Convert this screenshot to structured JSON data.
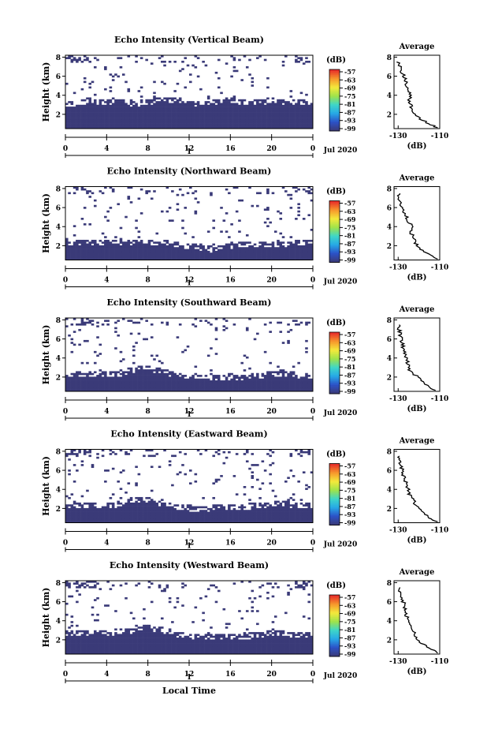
{
  "figure": {
    "xlabel_bottom": "Local Time",
    "date_label": "Jul 2020",
    "colorbar_unit": "(dB)",
    "colorbar_ticks": [
      "-57",
      "-63",
      "-69",
      "-75",
      "-81",
      "-87",
      "-93",
      "-99"
    ],
    "colors": {
      "echo_fill": "#3a3a78",
      "background": "#ffffff",
      "colorbar": [
        "#3a3a78",
        "#2c52c8",
        "#27a9e6",
        "#3fd6c8",
        "#9fe34a",
        "#f3ea3c",
        "#f79a2c",
        "#e8302a"
      ]
    }
  },
  "chart_data": [
    {
      "type": "heatmap",
      "title": "Echo Intensity (Vertical Beam)",
      "ylabel": "Height (km)",
      "x_ticks": [
        "0",
        "4",
        "8",
        "12",
        "16",
        "20",
        "0"
      ],
      "x_day_tick": "1",
      "y_ticks": [
        "2",
        "4",
        "6",
        "8"
      ],
      "xlim": [
        0,
        24
      ],
      "ylim": [
        0.5,
        8.2
      ],
      "echo_top_km": [
        3.1,
        3.0,
        3.4,
        3.3,
        3.3,
        3.4,
        3.0,
        3.1,
        3.3,
        3.4,
        3.5,
        3.4,
        3.2,
        3.1,
        3.3,
        3.3,
        3.4,
        3.3,
        3.3,
        3.3,
        3.4,
        3.3,
        3.3,
        3.3
      ],
      "average_profile": {
        "title": "Average",
        "xlabel": "(dB)",
        "x_ticks": [
          "-130",
          "-110"
        ],
        "xlim": [
          -132,
          -110
        ],
        "y_ticks": [
          "2",
          "4",
          "6",
          "8"
        ],
        "ylim": [
          0.5,
          8.2
        ],
        "height_km": [
          0.6,
          1.0,
          1.5,
          2.0,
          2.5,
          3.0,
          3.5,
          4.0,
          4.5,
          5.0,
          5.5,
          6.0,
          6.5,
          7.0,
          7.5
        ],
        "db": [
          -111,
          -115,
          -119,
          -122,
          -123,
          -124,
          -124.5,
          -124,
          -125,
          -126,
          -126.5,
          -127,
          -128.5,
          -129,
          -130
        ]
      }
    },
    {
      "type": "heatmap",
      "title": "Echo Intensity (Northward Beam)",
      "ylabel": "Height (km)",
      "x_ticks": [
        "0",
        "4",
        "8",
        "12",
        "16",
        "20",
        "0"
      ],
      "x_day_tick": "1",
      "y_ticks": [
        "2",
        "4",
        "6",
        "8"
      ],
      "xlim": [
        0,
        24
      ],
      "ylim": [
        0.5,
        8.2
      ],
      "echo_top_km": [
        2.4,
        2.3,
        2.2,
        2.2,
        2.3,
        2.4,
        2.3,
        2.2,
        2.2,
        2.2,
        2.2,
        2.0,
        1.9,
        1.8,
        1.6,
        1.8,
        2.0,
        2.1,
        2.0,
        2.1,
        2.1,
        2.1,
        2.2,
        2.2
      ],
      "average_profile": {
        "title": "Average",
        "xlabel": "(dB)",
        "x_ticks": [
          "-130",
          "-110"
        ],
        "xlim": [
          -132,
          -110
        ],
        "y_ticks": [
          "2",
          "4",
          "6",
          "8"
        ],
        "ylim": [
          0.5,
          8.2
        ],
        "height_km": [
          0.6,
          1.0,
          1.5,
          2.0,
          2.5,
          3.0,
          3.5,
          4.0,
          4.5,
          5.0,
          5.5,
          6.0,
          6.5,
          7.0,
          7.5
        ],
        "db": [
          -111,
          -114,
          -118,
          -121,
          -122,
          -123,
          -124,
          -122,
          -125,
          -126,
          -127,
          -128,
          -129,
          -130,
          -130
        ]
      }
    },
    {
      "type": "heatmap",
      "title": "Echo Intensity (Southward Beam)",
      "ylabel": "Height (km)",
      "x_ticks": [
        "0",
        "4",
        "8",
        "12",
        "16",
        "20",
        "0"
      ],
      "x_day_tick": "1",
      "y_ticks": [
        "2",
        "4",
        "6",
        "8"
      ],
      "xlim": [
        0,
        24
      ],
      "ylim": [
        0.5,
        8.2
      ],
      "echo_top_km": [
        2.2,
        2.3,
        2.3,
        2.2,
        2.2,
        2.3,
        2.6,
        2.8,
        2.8,
        2.6,
        2.3,
        2.1,
        2.1,
        2.0,
        1.9,
        2.0,
        2.0,
        1.9,
        2.0,
        2.1,
        2.3,
        2.4,
        2.2,
        2.1
      ],
      "average_profile": {
        "title": "Average",
        "xlabel": "(dB)",
        "x_ticks": [
          "-130",
          "-110"
        ],
        "xlim": [
          -132,
          -110
        ],
        "y_ticks": [
          "2",
          "4",
          "6",
          "8"
        ],
        "ylim": [
          0.5,
          8.2
        ],
        "height_km": [
          0.6,
          1.0,
          1.5,
          2.0,
          2.5,
          3.0,
          3.5,
          4.0,
          4.5,
          5.0,
          5.5,
          6.0,
          6.5,
          7.0,
          7.5
        ],
        "db": [
          -112,
          -115,
          -118,
          -120,
          -124,
          -125,
          -125.5,
          -126,
          -127,
          -127.5,
          -128,
          -128.5,
          -129,
          -129.5,
          -130
        ]
      }
    },
    {
      "type": "heatmap",
      "title": "Echo Intensity (Eastward Beam)",
      "ylabel": "Height (km)",
      "x_ticks": [
        "0",
        "4",
        "8",
        "12",
        "16",
        "20",
        "0"
      ],
      "x_day_tick": "1",
      "y_ticks": [
        "2",
        "4",
        "6",
        "8"
      ],
      "xlim": [
        0,
        24
      ],
      "ylim": [
        0.5,
        8.2
      ],
      "echo_top_km": [
        2.2,
        2.3,
        2.3,
        2.2,
        2.2,
        2.4,
        2.7,
        2.9,
        2.8,
        2.5,
        2.2,
        2.1,
        2.0,
        2.0,
        2.0,
        2.1,
        2.0,
        2.1,
        2.2,
        2.3,
        2.5,
        2.5,
        2.3,
        2.2
      ],
      "average_profile": {
        "title": "Average",
        "xlabel": "(dB)",
        "x_ticks": [
          "-130",
          "-110"
        ],
        "xlim": [
          -132,
          -110
        ],
        "y_ticks": [
          "2",
          "4",
          "6",
          "8"
        ],
        "ylim": [
          0.5,
          8.2
        ],
        "height_km": [
          0.6,
          1.0,
          1.5,
          2.0,
          2.5,
          3.0,
          3.5,
          4.0,
          4.5,
          5.0,
          5.5,
          6.0,
          6.5,
          7.0,
          7.5
        ],
        "db": [
          -111,
          -115,
          -118,
          -120,
          -122,
          -123,
          -124.5,
          -125,
          -126,
          -126.5,
          -127.5,
          -128,
          -129,
          -129.5,
          -130
        ]
      }
    },
    {
      "type": "heatmap",
      "title": "Echo Intensity (Westward Beam)",
      "ylabel": "Height (km)",
      "x_ticks": [
        "0",
        "4",
        "8",
        "12",
        "16",
        "20",
        "0"
      ],
      "x_day_tick": "1",
      "y_ticks": [
        "2",
        "4",
        "6",
        "8"
      ],
      "xlim": [
        0,
        24
      ],
      "ylim": [
        0.5,
        8.2
      ],
      "echo_top_km": [
        2.6,
        2.6,
        2.7,
        2.6,
        2.6,
        2.8,
        2.8,
        3.3,
        3.2,
        3.0,
        2.8,
        2.5,
        2.3,
        2.3,
        2.2,
        2.2,
        2.3,
        2.3,
        2.4,
        2.5,
        2.7,
        2.6,
        2.5,
        2.4
      ],
      "average_profile": {
        "title": "Average",
        "xlabel": "(dB)",
        "x_ticks": [
          "-130",
          "-110"
        ],
        "xlim": [
          -132,
          -110
        ],
        "y_ticks": [
          "2",
          "4",
          "6",
          "8"
        ],
        "ylim": [
          0.5,
          8.2
        ],
        "height_km": [
          0.6,
          1.0,
          1.5,
          2.0,
          2.5,
          3.0,
          3.5,
          4.0,
          4.5,
          5.0,
          5.5,
          6.0,
          6.5,
          7.0,
          7.5
        ],
        "db": [
          -111,
          -114,
          -118,
          -121,
          -122,
          -123,
          -124,
          -125,
          -126,
          -126.5,
          -127,
          -127.5,
          -128.5,
          -129.5,
          -130
        ]
      }
    }
  ]
}
